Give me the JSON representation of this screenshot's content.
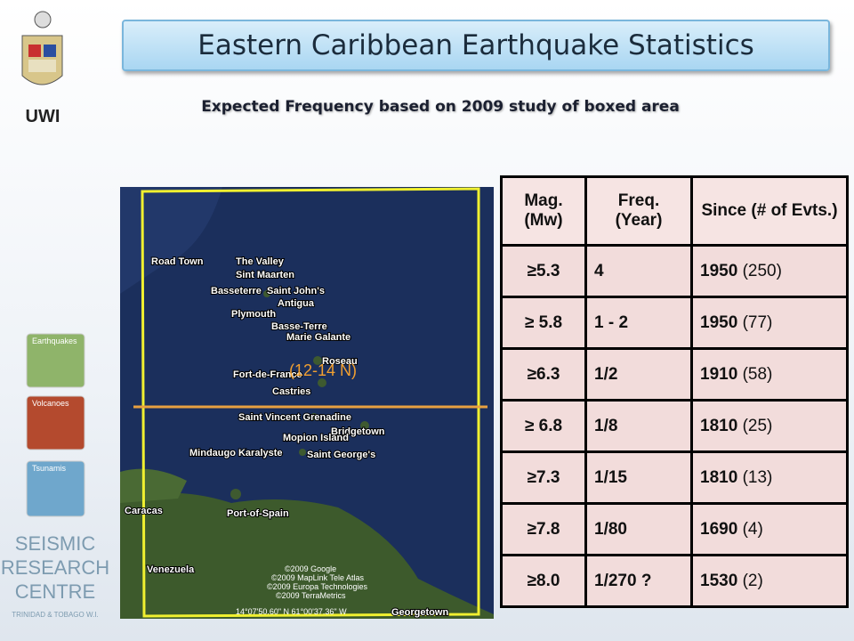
{
  "header": {
    "title": "Eastern Caribbean Earthquake Statistics",
    "subtitle": "Expected Frequency based on 2009 study of boxed area"
  },
  "logo": {
    "text": "UWI"
  },
  "sidebar": {
    "items": [
      "Earthquakes",
      "Volcanoes",
      "Tsunamis"
    ],
    "org": [
      "SEISMIC",
      "RESEARCH",
      "CENTRE"
    ],
    "location": "TRINIDAD & TOBAGO W.I."
  },
  "map": {
    "labels": [
      "Road Town",
      "The Valley",
      "Sint Maarten",
      "Basseterre",
      "Saint John's",
      "Antigua",
      "Plymouth",
      "Basse-Terre",
      "Marie Galante",
      "Roseau",
      "Fort-de-France",
      "Castries",
      "Saint Vincent Grenadine",
      "Bridgetown",
      "Mopion Island",
      "Mindaugo Karalyste",
      "Saint George's",
      "Caracas",
      "Port-of-Spain",
      "Venezuela",
      "Georgetown"
    ],
    "box_label": "(12-14 N)",
    "credits": [
      "©2009 Google",
      "©2009 MapLink Tele Atlas",
      "©2009 Europa Technologies",
      "©2009 TerraMetrics"
    ],
    "coordinates": "14°07'50.60\" N   61°00'37.36\" W"
  },
  "table": {
    "header": [
      "Mag. (Mw)",
      "Freq. (Year)",
      "Since  (# of Evts.)"
    ],
    "rows": [
      [
        "≥5.3",
        "4",
        {
          "year": "1950",
          "count": "(250)"
        }
      ],
      [
        "≥ 5.8",
        "1 - 2",
        {
          "year": "1950",
          "count": "(77)"
        }
      ],
      [
        "≥6.3",
        "1/2",
        {
          "year": "1910",
          "count": "(58)"
        }
      ],
      [
        "≥ 6.8",
        "1/8",
        {
          "year": "1810",
          "count": "(25)"
        }
      ],
      [
        "≥7.3",
        "1/15",
        {
          "year": "1810",
          "count": "(13)"
        }
      ],
      [
        "≥7.8",
        "1/80",
        {
          "year": "1690",
          "count": "(4)"
        }
      ],
      [
        "≥8.0",
        "1/270 ?",
        {
          "year": "1530",
          "count": "(2)"
        }
      ]
    ]
  }
}
